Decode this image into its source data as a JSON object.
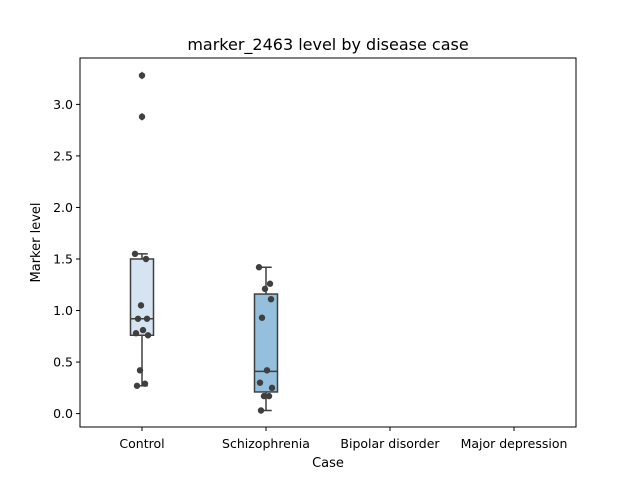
{
  "chart_data": {
    "type": "box",
    "title": "marker_2463 level by disease case",
    "xlabel": "Case",
    "ylabel": "Marker level",
    "ylim": [
      -0.13,
      3.45
    ],
    "yticks": [
      "0.0",
      "0.5",
      "1.0",
      "1.5",
      "2.0",
      "2.5",
      "3.0"
    ],
    "grid": false,
    "categories": [
      "Control",
      "Schizophrenia",
      "Bipolar disorder",
      "Major depression"
    ],
    "boxes": [
      {
        "category": "Control",
        "q1": 0.76,
        "median": 0.92,
        "q3": 1.5,
        "whisker_low": 0.27,
        "whisker_high": 1.55,
        "outliers": [
          2.88,
          3.28
        ],
        "color": "#d6e4f2",
        "points": [
          0.27,
          0.29,
          0.42,
          0.76,
          0.78,
          0.81,
          0.92,
          0.92,
          1.05,
          1.5,
          1.55,
          2.88,
          3.28
        ]
      },
      {
        "category": "Schizophrenia",
        "q1": 0.21,
        "median": 0.41,
        "q3": 1.16,
        "whisker_low": 0.03,
        "whisker_high": 1.42,
        "outliers": [],
        "color": "#94c0dd",
        "points": [
          0.03,
          0.17,
          0.17,
          0.25,
          0.3,
          0.42,
          0.93,
          1.11,
          1.21,
          1.26,
          1.42
        ]
      },
      {
        "category": "Bipolar disorder",
        "color": "#4b93c4",
        "points": []
      },
      {
        "category": "Major depression",
        "color": "#1b63a5",
        "points": []
      }
    ],
    "box_edge_color": "#3f3f3f",
    "point_color": "#3f3f3f"
  }
}
